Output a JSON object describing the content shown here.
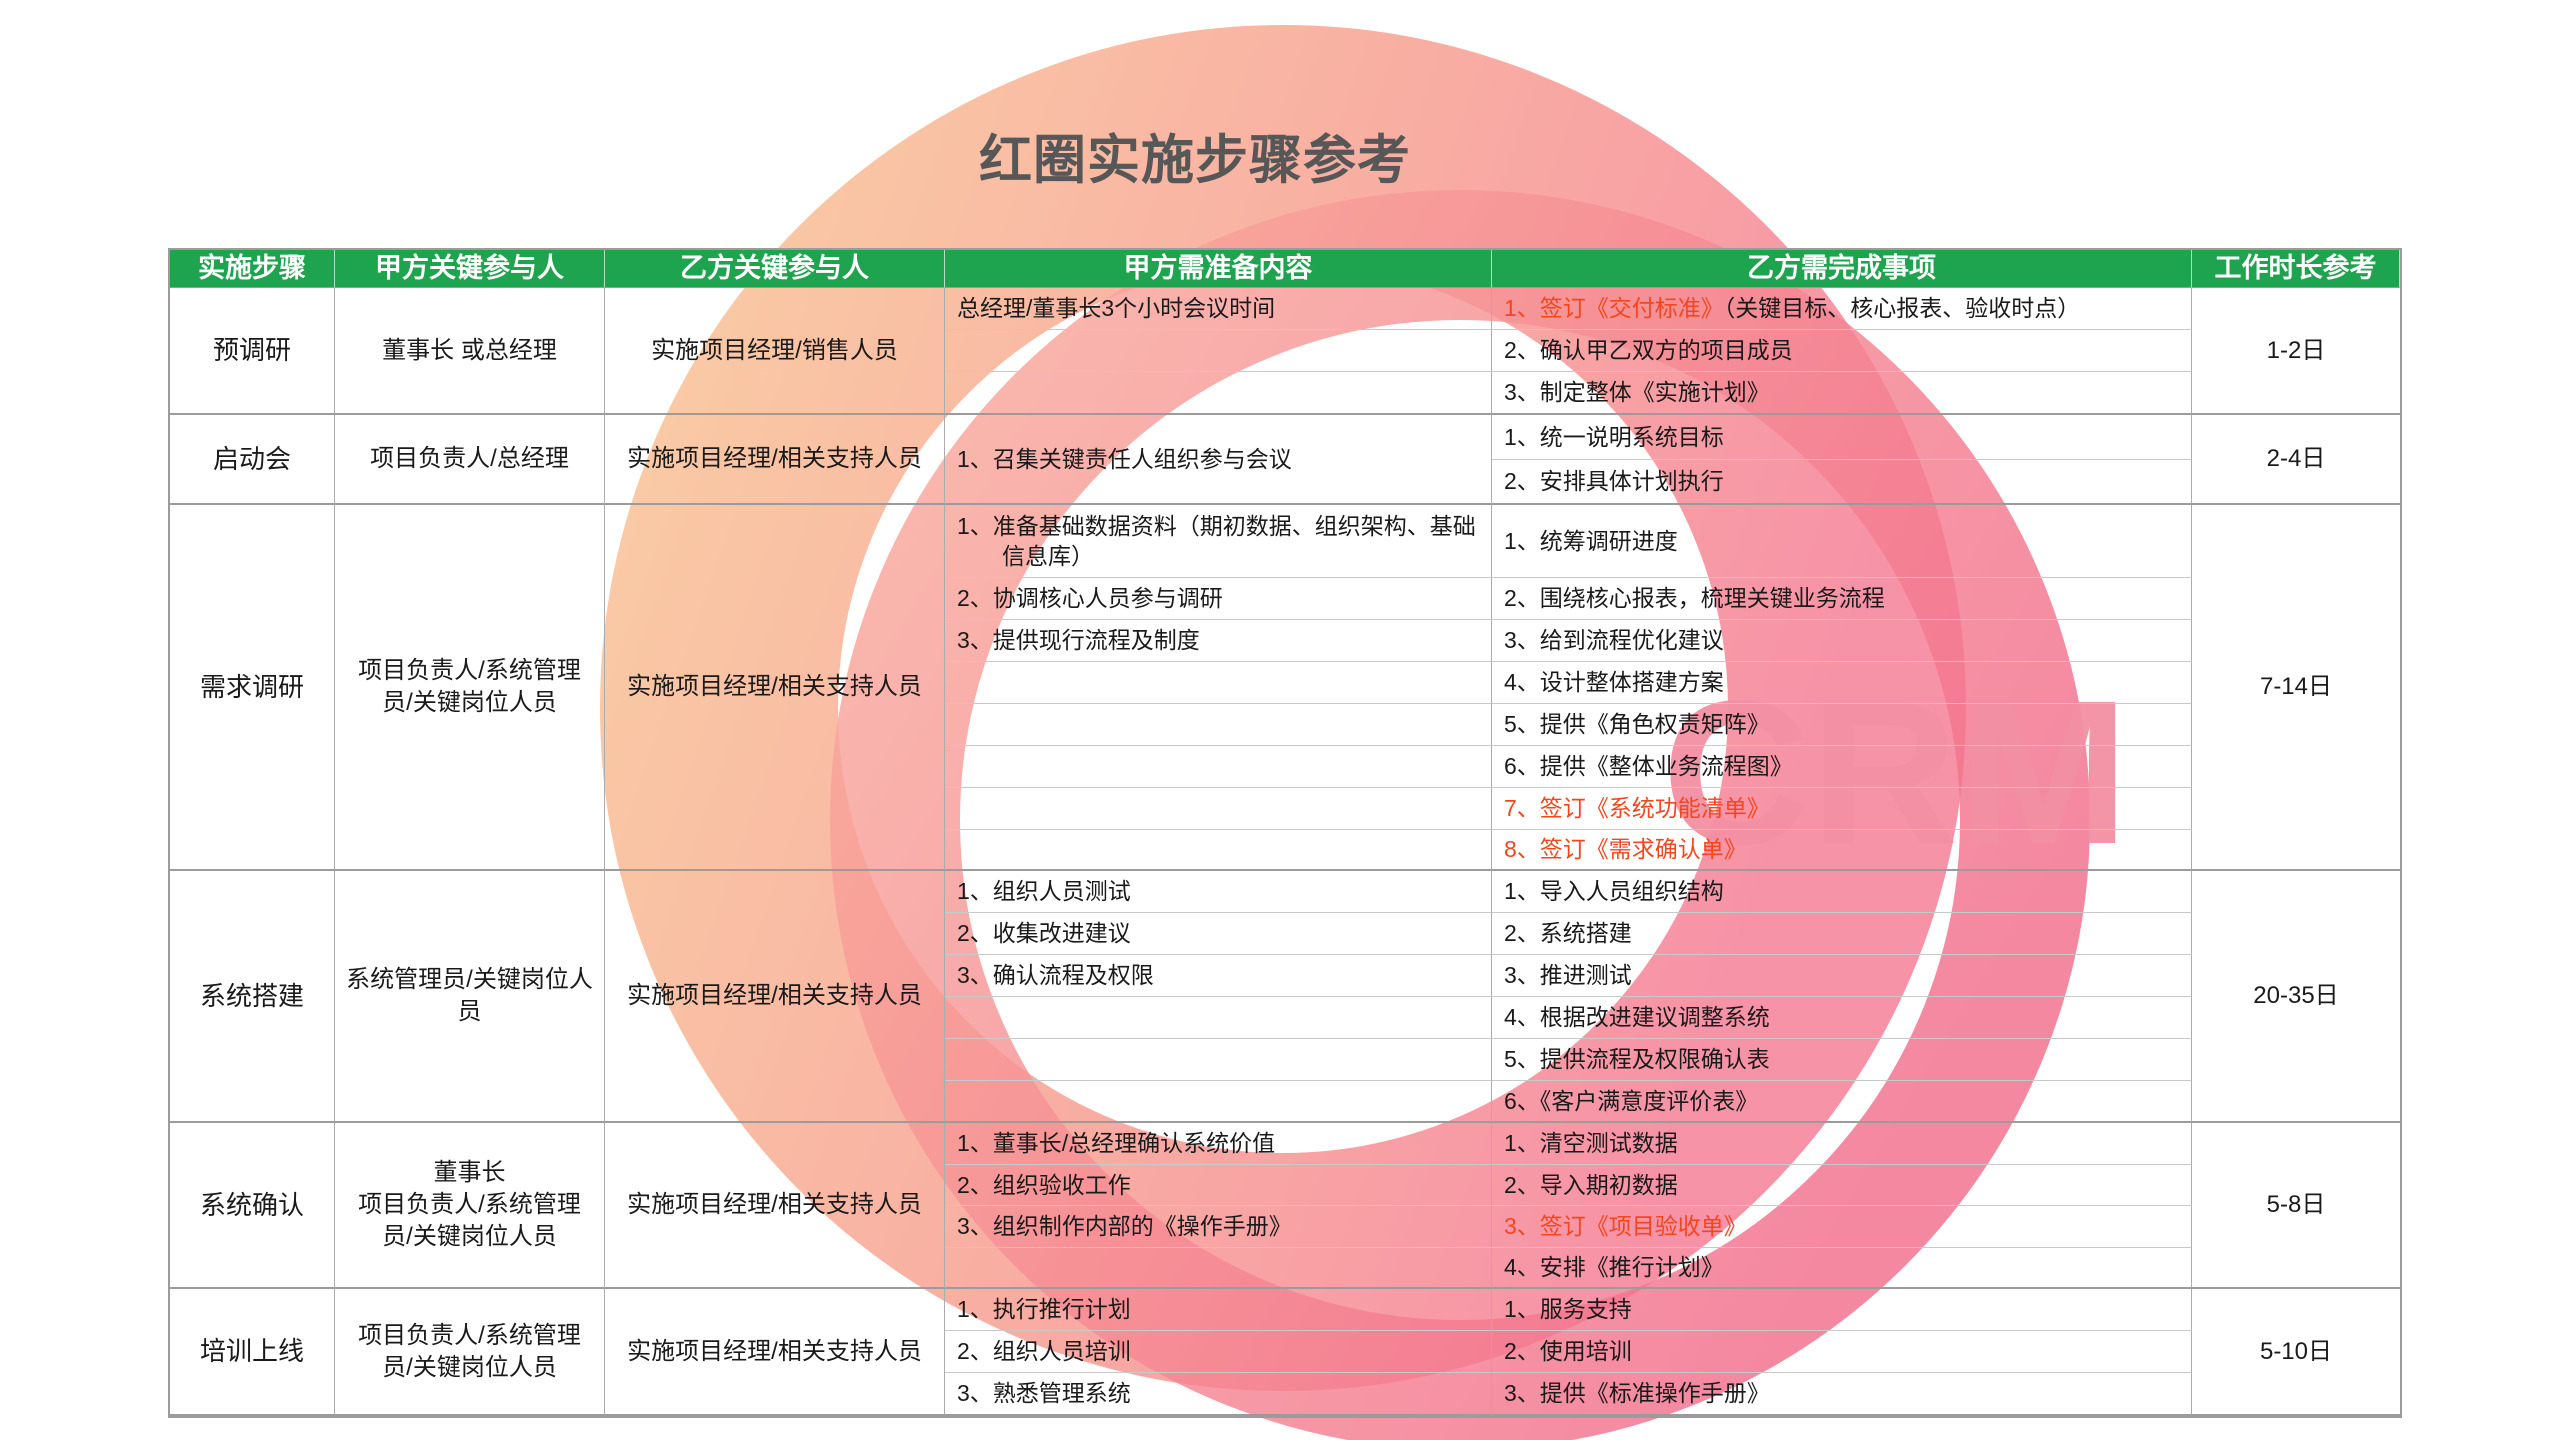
{
  "title": "红圈实施步骤参考",
  "watermark": {
    "text": "CRM",
    "text_color": "#F390A3",
    "ring_peach_start": "#F9C59E",
    "ring_peach_end": "#F68AA0",
    "ring_pink_start": "#F9AC9C",
    "ring_pink_end": "#F26E8C"
  },
  "theme": {
    "header_green": "#1EA44F",
    "highlight_red": "#F4461C",
    "title_gray": "#575757"
  },
  "table": {
    "headers": [
      "实施步骤",
      "甲方关键参与人",
      "乙方关键参与人",
      "甲方需准备内容",
      "乙方需完成事项",
      "工作时长参考"
    ],
    "rows": [
      {
        "step": "预调研",
        "party_a": "董事长 或总经理",
        "party_b": "实施项目经理/销售人员",
        "party_a_prep": [
          "总经理/董事长3个小时会议时间",
          "",
          ""
        ],
        "party_b_tasks": [
          {
            "red": "1、签订《交付标准》",
            "text": "（关键目标、核心报表、验收时点）"
          },
          "2、确认甲乙双方的项目成员",
          "3、制定整体《实施计划》"
        ],
        "duration": "1-2日"
      },
      {
        "step": "启动会",
        "party_a": "项目负责人/总经理",
        "party_b": "实施项目经理/相关支持人员",
        "party_a_prep": [
          "1、召集关键责任人组织参与会议"
        ],
        "party_b_tasks": [
          "1、统一说明系统目标",
          "2、安排具体计划执行"
        ],
        "duration": "2-4日"
      },
      {
        "step": "需求调研",
        "party_a": "项目负责人/系统管理员/关键岗位人员",
        "party_b": "实施项目经理/相关支持人员",
        "party_a_prep": [
          "1、准备基础数据资料（期初数据、组织架构、基础信息库）",
          "2、协调核心人员参与调研",
          "3、提供现行流程及制度",
          "",
          "",
          "",
          "",
          ""
        ],
        "party_b_tasks": [
          "1、统筹调研进度",
          "2、围绕核心报表，梳理关键业务流程",
          "3、给到流程优化建议",
          "4、设计整体搭建方案",
          "5、提供《角色权责矩阵》",
          "6、提供《整体业务流程图》",
          {
            "red": "7、签订《系统功能清单》"
          },
          {
            "red": "8、签订《需求确认单》"
          }
        ],
        "duration": "7-14日"
      },
      {
        "step": "系统搭建",
        "party_a": "系统管理员/关键岗位人员",
        "party_b": "实施项目经理/相关支持人员",
        "party_a_prep": [
          "1、组织人员测试",
          "2、收集改进建议",
          "3、确认流程及权限",
          "",
          "",
          ""
        ],
        "party_b_tasks": [
          "1、导入人员组织结构",
          "2、系统搭建",
          "3、推进测试",
          "4、根据改进建议调整系统",
          "5、提供流程及权限确认表",
          "6、《客户满意度评价表》"
        ],
        "duration": "20-35日"
      },
      {
        "step": "系统确认",
        "party_a": "董事长\n项目负责人/系统管理员/关键岗位人员",
        "party_b": "实施项目经理/相关支持人员",
        "party_a_prep": [
          "1、董事长/总经理确认系统价值",
          "2、组织验收工作",
          "3、组织制作内部的《操作手册》",
          ""
        ],
        "party_b_tasks": [
          "1、清空测试数据",
          "2、导入期初数据",
          {
            "red": "3、签订《项目验收单》"
          },
          "4、安排《推行计划》"
        ],
        "duration": "5-8日"
      },
      {
        "step": "培训上线",
        "party_a": "项目负责人/系统管理员/关键岗位人员",
        "party_b": "实施项目经理/相关支持人员",
        "party_a_prep": [
          "1、执行推行计划",
          "2、组织人员培训",
          "3、熟悉管理系统"
        ],
        "party_b_tasks": [
          "1、服务支持",
          "2、使用培训",
          "3、提供《标准操作手册》"
        ],
        "duration": "5-10日"
      }
    ]
  }
}
